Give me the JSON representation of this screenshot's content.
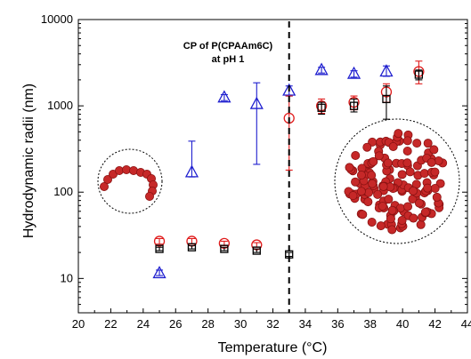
{
  "chart_data": {
    "type": "scatter",
    "title": "",
    "xlabel": "Temperature (°C)",
    "ylabel": "Hydrodynamic radii (nm)",
    "xlim": [
      20,
      44
    ],
    "ylim": [
      4,
      10000
    ],
    "yscale": "log",
    "x_ticks": [
      20,
      22,
      24,
      26,
      28,
      30,
      32,
      34,
      36,
      38,
      40,
      42,
      44
    ],
    "y_ticks": [
      {
        "value": 10,
        "label": "10"
      },
      {
        "value": 100,
        "label": "100"
      },
      {
        "value": 1000,
        "label": "1000"
      },
      {
        "value": 10000,
        "label": "10000"
      }
    ],
    "grid": false,
    "annotation": {
      "lines": [
        "CP of P(CPAAm6C)",
        "at pH 1"
      ],
      "x_line": 33
    },
    "series": [
      {
        "marker": "triangle",
        "color": "#1f1fcf",
        "points": [
          {
            "x": 25,
            "y": 11.5,
            "lo": 10.8,
            "hi": 12.5
          },
          {
            "x": 27,
            "y": 170,
            "lo": 150,
            "hi": 390
          },
          {
            "x": 29,
            "y": 1250,
            "lo": 1150,
            "hi": 1350
          },
          {
            "x": 31,
            "y": 1050,
            "lo": 210,
            "hi": 1850
          },
          {
            "x": 33,
            "y": 1500,
            "lo": 1300,
            "hi": 1700
          },
          {
            "x": 35,
            "y": 2600,
            "lo": 2400,
            "hi": 2800
          },
          {
            "x": 37,
            "y": 2350,
            "lo": 2150,
            "hi": 2550
          },
          {
            "x": 39,
            "y": 2500,
            "lo": 2200,
            "hi": 2900
          }
        ]
      },
      {
        "marker": "circle",
        "color": "#e01b1b",
        "points": [
          {
            "x": 25,
            "y": 27,
            "lo": 25,
            "hi": 29
          },
          {
            "x": 27,
            "y": 27,
            "lo": 25,
            "hi": 29
          },
          {
            "x": 29,
            "y": 25.5,
            "lo": 24,
            "hi": 27
          },
          {
            "x": 31,
            "y": 24.5,
            "lo": 23,
            "hi": 26
          },
          {
            "x": 33,
            "y": 720,
            "lo": 180,
            "hi": 1300
          },
          {
            "x": 35,
            "y": 1000,
            "lo": 820,
            "hi": 1200
          },
          {
            "x": 37,
            "y": 1100,
            "lo": 900,
            "hi": 1300
          },
          {
            "x": 39,
            "y": 1450,
            "lo": 1100,
            "hi": 1800
          },
          {
            "x": 41,
            "y": 2500,
            "lo": 1800,
            "hi": 3300
          }
        ]
      },
      {
        "marker": "square",
        "color": "#000000",
        "points": [
          {
            "x": 25,
            "y": 22,
            "lo": 21,
            "hi": 23
          },
          {
            "x": 27,
            "y": 23,
            "lo": 22,
            "hi": 24
          },
          {
            "x": 29,
            "y": 22,
            "lo": 21,
            "hi": 23
          },
          {
            "x": 31,
            "y": 21,
            "lo": 20,
            "hi": 22
          },
          {
            "x": 33,
            "y": 19,
            "lo": 18,
            "hi": 20
          },
          {
            "x": 35,
            "y": 950,
            "lo": 800,
            "hi": 1100
          },
          {
            "x": 37,
            "y": 1000,
            "lo": 850,
            "hi": 1200
          },
          {
            "x": 39,
            "y": 1200,
            "lo": 700,
            "hi": 1700
          },
          {
            "x": 41,
            "y": 2300,
            "lo": 2000,
            "hi": 2600
          }
        ]
      }
    ]
  }
}
